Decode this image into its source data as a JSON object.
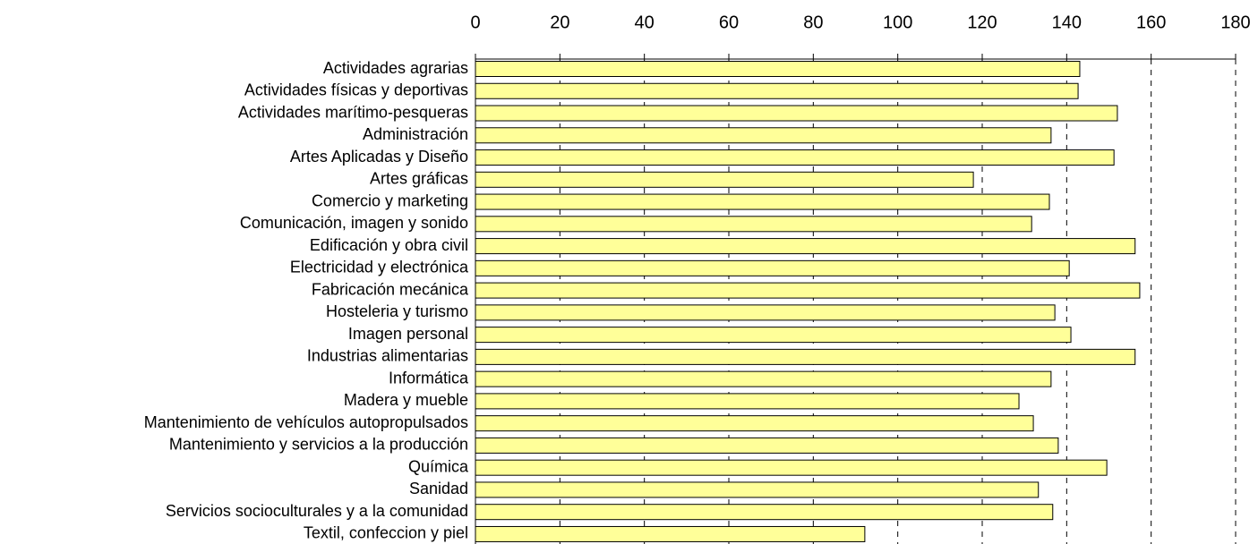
{
  "chart_data": {
    "type": "barh",
    "categories": [
      "Actividades agrarias",
      "Actividades físicas y deportivas",
      "Actividades marítimo-pesqueras",
      "Administración",
      "Artes Aplicadas y Diseño",
      "Artes gráficas",
      "Comercio y marketing",
      "Comunicación, imagen y sonido",
      "Edificación y obra civil",
      "Electricidad y electrónica",
      "Fabricación mecánica",
      "Hosteleria y turismo",
      "Imagen personal",
      "Industrias alimentarias",
      "Informática",
      "Madera y mueble",
      "Mantenimiento de vehículos autopropulsados",
      "Mantenimiento y servicios a la producción",
      "Química",
      "Sanidad",
      "Servicios socioculturales y a la comunidad",
      "Textil, confeccion y piel"
    ],
    "values": [
      143.1,
      142.7,
      152.0,
      136.3,
      151.2,
      117.9,
      135.9,
      131.7,
      156.2,
      140.6,
      157.3,
      137.2,
      141.0,
      156.2,
      136.3,
      128.7,
      132.1,
      138.0,
      149.5,
      133.3,
      136.7,
      92.2
    ],
    "color": "#ffff99",
    "xlim": [
      0,
      180
    ],
    "xticks": [
      0,
      20,
      40,
      60,
      80,
      100,
      120,
      140,
      160,
      180
    ],
    "grid": true
  }
}
